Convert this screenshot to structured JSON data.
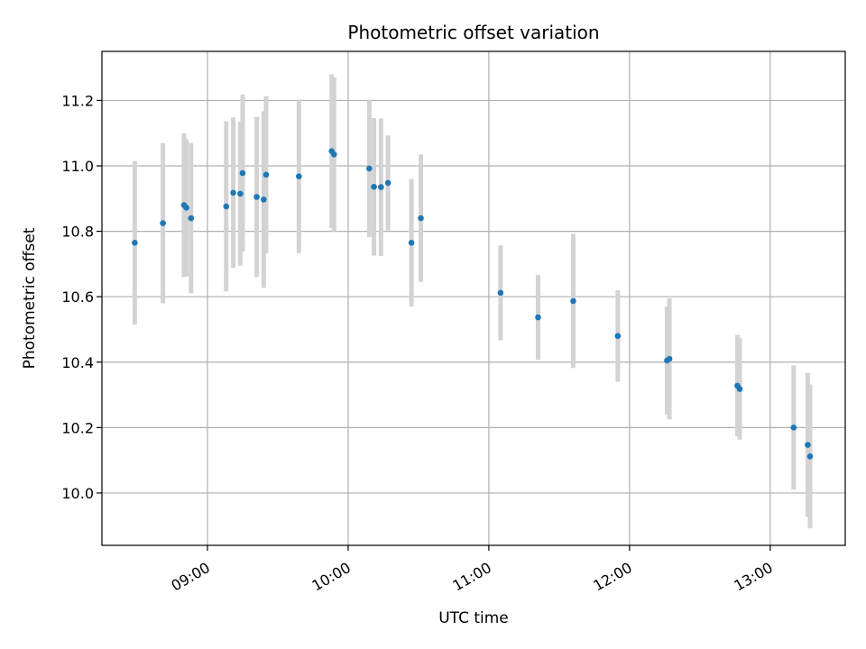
{
  "chart_data": {
    "type": "scatter",
    "title": "Photometric offset variation",
    "xlabel": "UTC time",
    "ylabel": "Photometric offset",
    "x_is_time": true,
    "xlim": [
      "08:15",
      "13:32"
    ],
    "ylim": [
      9.84,
      11.35
    ],
    "x_ticks": [
      "09:00",
      "10:00",
      "11:00",
      "12:00",
      "13:00"
    ],
    "y_ticks": [
      10.0,
      10.2,
      10.4,
      10.6,
      10.8,
      11.0,
      11.2
    ],
    "y_tick_labels": [
      "10.0",
      "10.2",
      "10.4",
      "10.6",
      "10.8",
      "11.0",
      "11.2"
    ],
    "grid": true,
    "colors": {
      "point": "#1f77b4",
      "errorbar": "#d3d3d3",
      "grid": "#b0b0b0"
    },
    "points": [
      {
        "x": "08:29",
        "y": 10.765,
        "err": 0.25
      },
      {
        "x": "08:41",
        "y": 10.825,
        "err": 0.245
      },
      {
        "x": "08:50",
        "y": 10.88,
        "err": 0.22
      },
      {
        "x": "08:51",
        "y": 10.872,
        "err": 0.21
      },
      {
        "x": "08:53",
        "y": 10.84,
        "err": 0.23
      },
      {
        "x": "09:08",
        "y": 10.876,
        "err": 0.26
      },
      {
        "x": "09:11",
        "y": 10.918,
        "err": 0.23
      },
      {
        "x": "09:14",
        "y": 10.915,
        "err": 0.22
      },
      {
        "x": "09:15",
        "y": 10.978,
        "err": 0.24
      },
      {
        "x": "09:21",
        "y": 10.905,
        "err": 0.245
      },
      {
        "x": "09:24",
        "y": 10.897,
        "err": 0.27
      },
      {
        "x": "09:25",
        "y": 10.973,
        "err": 0.24
      },
      {
        "x": "09:39",
        "y": 10.968,
        "err": 0.235
      },
      {
        "x": "09:53",
        "y": 11.045,
        "err": 0.235
      },
      {
        "x": "09:54",
        "y": 11.035,
        "err": 0.235
      },
      {
        "x": "10:09",
        "y": 10.992,
        "err": 0.21
      },
      {
        "x": "10:11",
        "y": 10.936,
        "err": 0.21
      },
      {
        "x": "10:14",
        "y": 10.935,
        "err": 0.21
      },
      {
        "x": "10:17",
        "y": 10.948,
        "err": 0.145
      },
      {
        "x": "10:27",
        "y": 10.765,
        "err": 0.195
      },
      {
        "x": "10:31",
        "y": 10.84,
        "err": 0.195
      },
      {
        "x": "11:05",
        "y": 10.612,
        "err": 0.145
      },
      {
        "x": "11:21",
        "y": 10.537,
        "err": 0.13
      },
      {
        "x": "11:36",
        "y": 10.587,
        "err": 0.205
      },
      {
        "x": "11:55",
        "y": 10.48,
        "err": 0.14
      },
      {
        "x": "12:16",
        "y": 10.405,
        "err": 0.165
      },
      {
        "x": "12:17",
        "y": 10.41,
        "err": 0.185
      },
      {
        "x": "12:46",
        "y": 10.328,
        "err": 0.155
      },
      {
        "x": "12:47",
        "y": 10.318,
        "err": 0.155
      },
      {
        "x": "13:10",
        "y": 10.2,
        "err": 0.19
      },
      {
        "x": "13:16",
        "y": 10.147,
        "err": 0.22
      },
      {
        "x": "13:17",
        "y": 10.112,
        "err": 0.22
      }
    ]
  }
}
